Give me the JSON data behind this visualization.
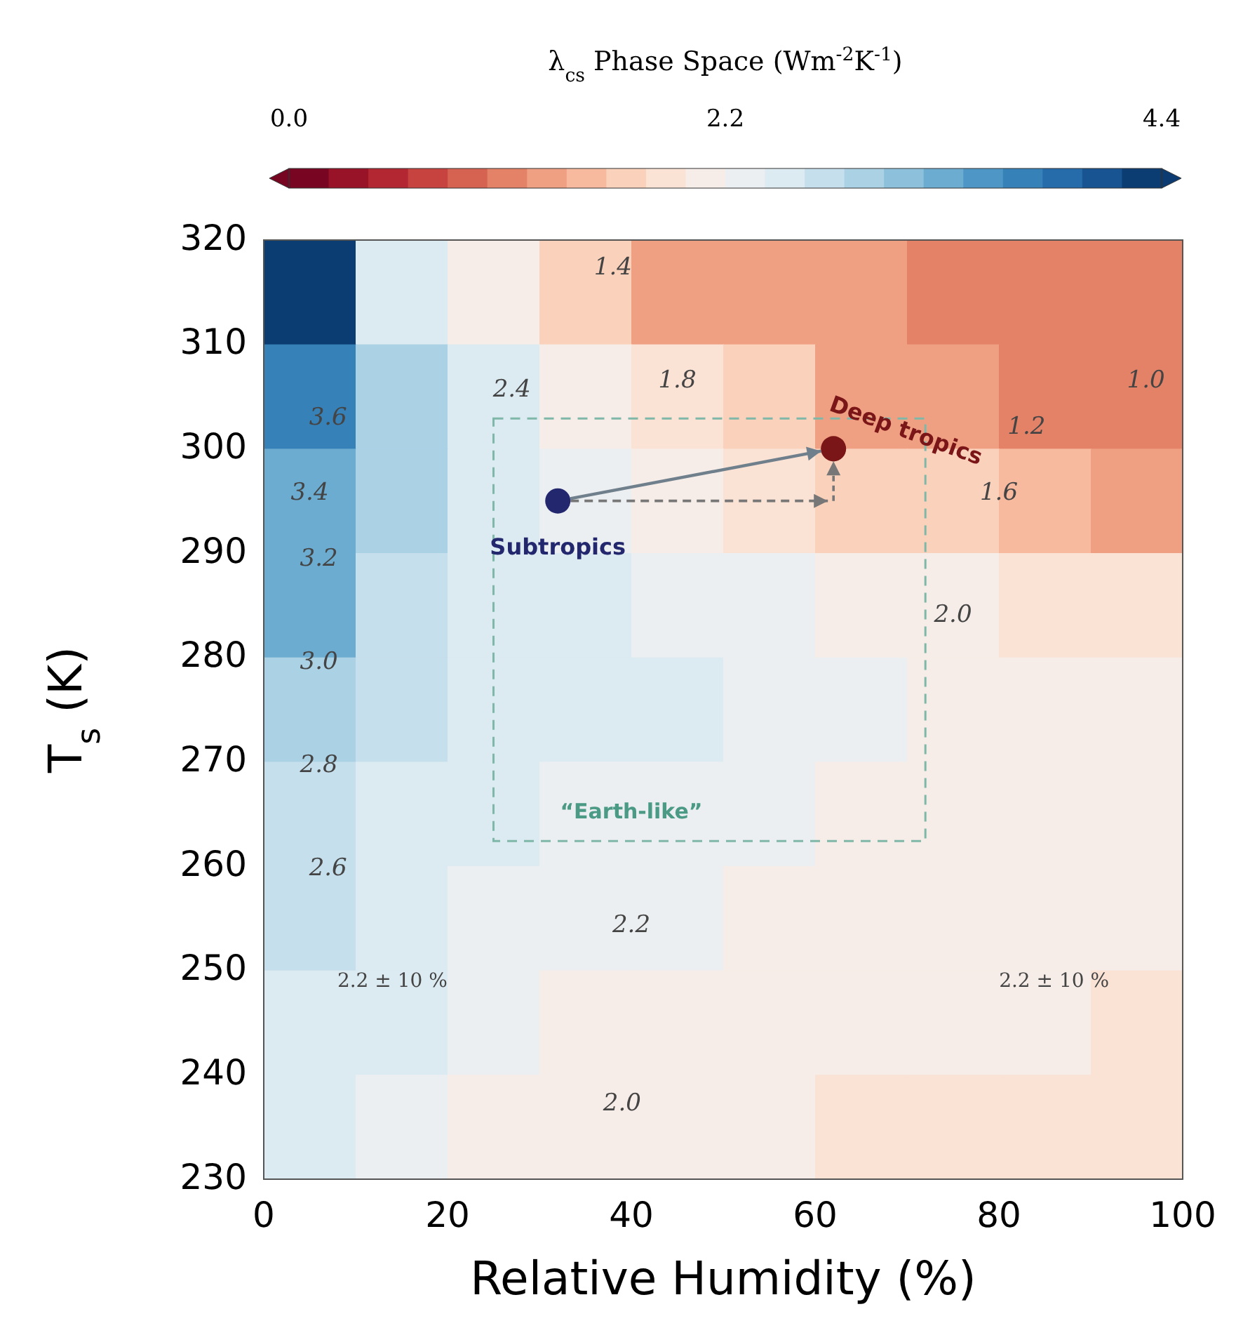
{
  "chart_data": {
    "type": "heatmap",
    "clabel": "λ$_{cs}$ Phase Space (Wm$^{-2}$K$^{-1}$)",
    "xlabel": "Relative Humidity (%)",
    "ylabel": "T$_{s}$ (K)",
    "x": [
      5,
      15,
      25,
      35,
      45,
      55,
      65,
      75,
      85,
      95
    ],
    "y": [
      315,
      305,
      295,
      285,
      275,
      265,
      255,
      245,
      235
    ],
    "cells": [
      [
        4.2,
        2.6,
        2.1,
        1.6,
        1.4,
        1.3,
        1.2,
        1.0,
        1.0,
        1.0
      ],
      [
        3.7,
        3.0,
        2.5,
        2.1,
        1.85,
        1.6,
        1.35,
        1.2,
        1.1,
        1.0
      ],
      [
        3.4,
        2.9,
        2.6,
        2.3,
        2.1,
        1.9,
        1.75,
        1.6,
        1.5,
        1.4
      ],
      [
        3.2,
        2.8,
        2.6,
        2.5,
        2.35,
        2.25,
        2.15,
        2.0,
        1.9,
        1.8
      ],
      [
        3.0,
        2.7,
        2.55,
        2.45,
        2.4,
        2.3,
        2.22,
        2.15,
        2.1,
        2.05
      ],
      [
        2.8,
        2.6,
        2.45,
        2.35,
        2.3,
        2.25,
        2.18,
        2.15,
        2.12,
        2.1
      ],
      [
        2.65,
        2.5,
        2.35,
        2.25,
        2.2,
        2.15,
        2.15,
        2.12,
        2.1,
        2.1
      ],
      [
        2.55,
        2.4,
        2.22,
        2.15,
        2.12,
        2.1,
        2.08,
        2.05,
        2.0,
        1.95
      ],
      [
        2.4,
        2.2,
        2.15,
        2.1,
        2.05,
        2.0,
        1.98,
        1.95,
        1.9,
        1.85
      ]
    ],
    "clim": [
      0,
      4.4
    ],
    "cticks": [
      {
        "value": 0,
        "label": "0.0"
      },
      2.2,
      4.4
    ],
    "xlim": [
      0,
      100
    ],
    "xticks": [
      0,
      20,
      40,
      60,
      80,
      100
    ],
    "ylim": [
      230,
      320
    ],
    "yticks": [
      230,
      240,
      250,
      260,
      270,
      280,
      290,
      300,
      310,
      320
    ],
    "series": [
      {
        "type": "scatter",
        "name": "Subtropics",
        "color": "#23286e",
        "x": [
          32
        ],
        "values": [
          295
        ]
      },
      {
        "type": "scatter",
        "name": "Deep tropics",
        "color": "#7a1518",
        "x": [
          62
        ],
        "values": [
          300
        ]
      }
    ],
    "annotations": [
      "“Earth-like”",
      "2.2 ± 10 %",
      "2.2 ± 10 %",
      "2.2",
      "2.0",
      "2.0",
      "2.4",
      "2.6",
      "2.8",
      "3.0",
      "3.2",
      "3.4",
      "3.6",
      "1.4",
      "1.8",
      "1.2",
      "1.6",
      "1.0"
    ]
  }
}
